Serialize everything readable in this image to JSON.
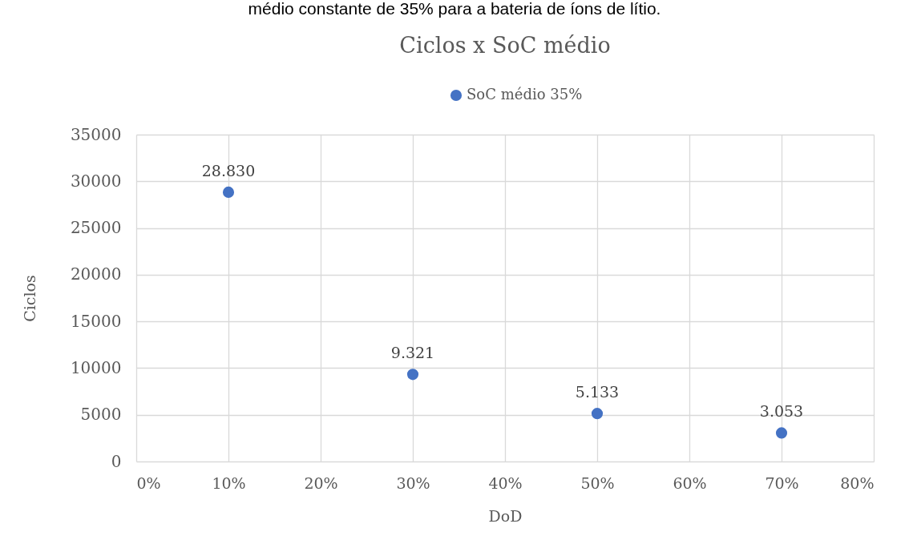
{
  "chart_data": {
    "type": "scatter",
    "title": "Ciclos x SoC médio",
    "xlabel": "DoD",
    "ylabel": "Ciclos",
    "annotations": [
      "médio constante de 35% para a bateria de íons de lítio."
    ],
    "x": [
      10,
      30,
      50,
      70
    ],
    "series": [
      {
        "name": "SoC médio 35%",
        "color": "#4472c4",
        "values": [
          28830,
          9321,
          5133,
          3053
        ],
        "value_labels": [
          "28.830",
          "9.321",
          "5.133",
          "3.053"
        ]
      }
    ],
    "xlim": [
      0,
      80
    ],
    "xticks": [
      {
        "value": 0,
        "label": "0%"
      },
      {
        "value": 10,
        "label": "10%"
      },
      {
        "value": 20,
        "label": "20%"
      },
      {
        "value": 30,
        "label": "30%"
      },
      {
        "value": 40,
        "label": "40%"
      },
      {
        "value": 50,
        "label": "50%"
      },
      {
        "value": 60,
        "label": "60%"
      },
      {
        "value": 70,
        "label": "70%"
      },
      {
        "value": 80,
        "label": "80%"
      }
    ],
    "ylim": [
      0,
      35000
    ],
    "yticks": [
      0,
      5000,
      10000,
      15000,
      20000,
      25000,
      30000,
      35000
    ],
    "grid": true,
    "legend": "top",
    "marker": "circle"
  }
}
